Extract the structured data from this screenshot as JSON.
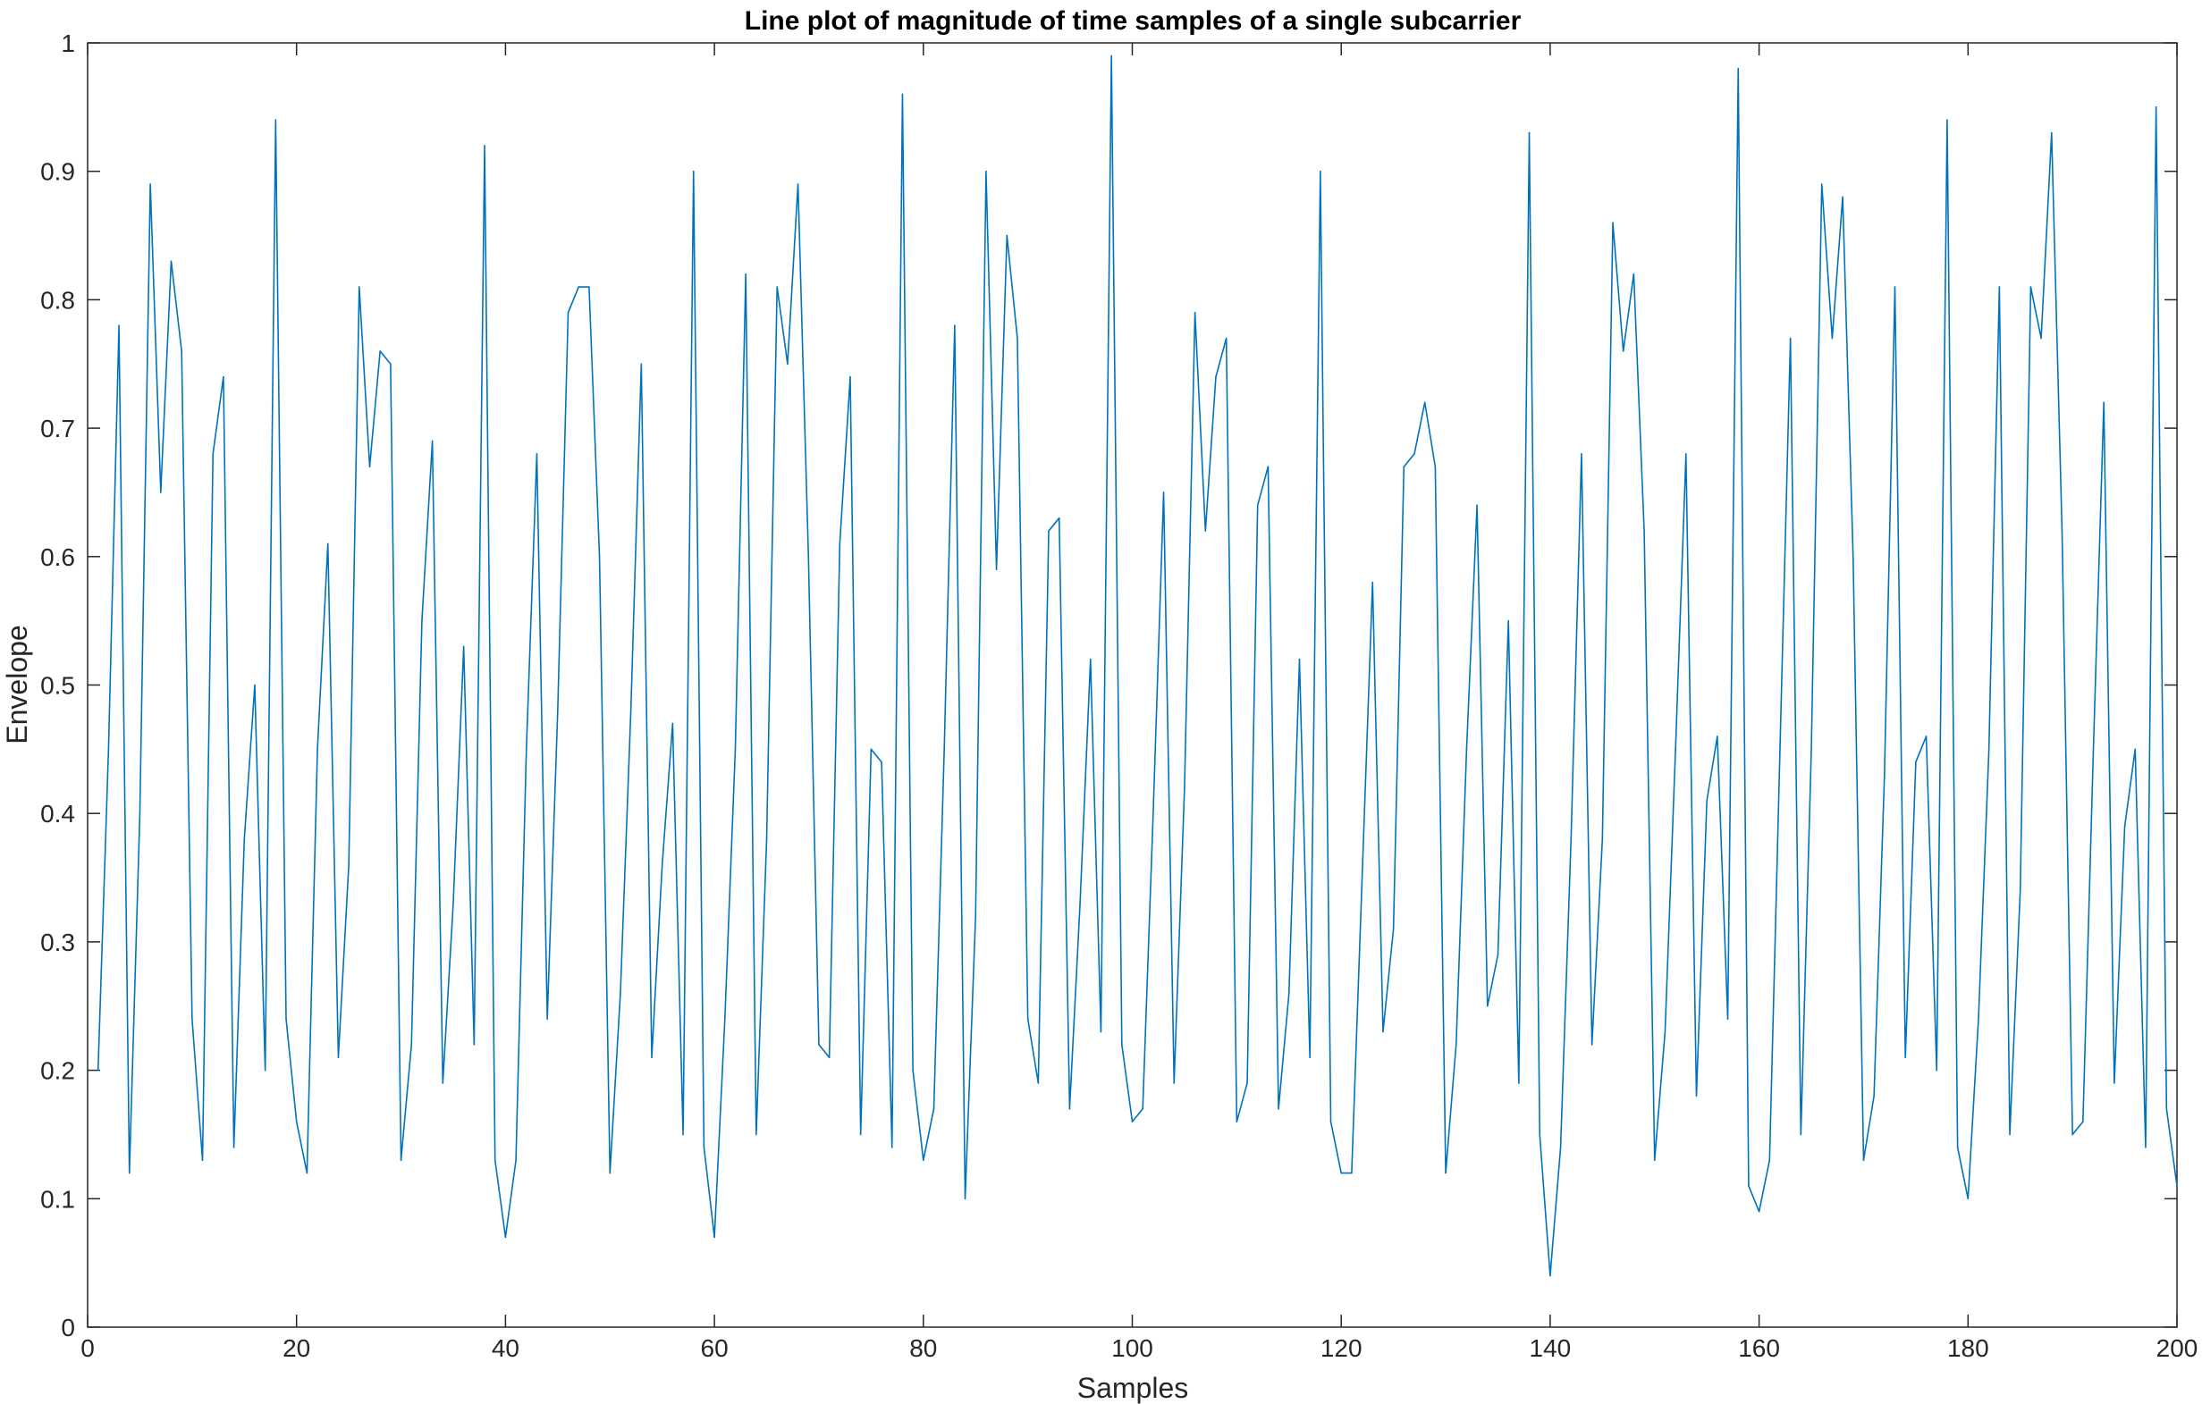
{
  "chart_data": {
    "type": "line",
    "title": "Line plot of magnitude of time samples of a single subcarrier",
    "xlabel": "Samples",
    "ylabel": "Envelope",
    "xlim": [
      0,
      200
    ],
    "ylim": [
      0,
      1
    ],
    "xticks": [
      "0",
      "20",
      "40",
      "60",
      "80",
      "100",
      "120",
      "140",
      "160",
      "180",
      "200"
    ],
    "yticks": [
      "0",
      "0.1",
      "0.2",
      "0.3",
      "0.4",
      "0.5",
      "0.6",
      "0.7",
      "0.8",
      "0.9",
      "1"
    ],
    "grid": false,
    "line_color": "#0072BD",
    "series": [
      {
        "x_start": 1,
        "x_step": 1,
        "values": [
          0.2,
          0.45,
          0.78,
          0.12,
          0.4,
          0.89,
          0.65,
          0.83,
          0.76,
          0.24,
          0.13,
          0.68,
          0.74,
          0.14,
          0.38,
          0.5,
          0.2,
          0.94,
          0.24,
          0.16,
          0.12,
          0.45,
          0.61,
          0.21,
          0.36,
          0.81,
          0.67,
          0.76,
          0.75,
          0.13,
          0.22,
          0.55,
          0.69,
          0.19,
          0.33,
          0.53,
          0.22,
          0.92,
          0.13,
          0.07,
          0.13,
          0.45,
          0.68,
          0.24,
          0.48,
          0.79,
          0.81,
          0.81,
          0.6,
          0.12,
          0.26,
          0.48,
          0.75,
          0.21,
          0.36,
          0.47,
          0.15,
          0.9,
          0.14,
          0.07,
          0.24,
          0.45,
          0.82,
          0.15,
          0.38,
          0.81,
          0.75,
          0.89,
          0.6,
          0.22,
          0.21,
          0.61,
          0.74,
          0.15,
          0.45,
          0.44,
          0.14,
          0.96,
          0.2,
          0.13,
          0.17,
          0.45,
          0.78,
          0.1,
          0.32,
          0.9,
          0.59,
          0.85,
          0.77,
          0.24,
          0.19,
          0.62,
          0.63,
          0.17,
          0.33,
          0.52,
          0.23,
          0.99,
          0.22,
          0.16,
          0.17,
          0.4,
          0.65,
          0.19,
          0.42,
          0.79,
          0.62,
          0.74,
          0.77,
          0.16,
          0.19,
          0.64,
          0.67,
          0.17,
          0.26,
          0.52,
          0.21,
          0.9,
          0.16,
          0.12,
          0.12,
          0.35,
          0.58,
          0.23,
          0.31,
          0.67,
          0.68,
          0.72,
          0.67,
          0.12,
          0.22,
          0.45,
          0.64,
          0.25,
          0.29,
          0.55,
          0.19,
          0.93,
          0.15,
          0.04,
          0.14,
          0.38,
          0.68,
          0.22,
          0.38,
          0.86,
          0.76,
          0.82,
          0.62,
          0.13,
          0.23,
          0.45,
          0.68,
          0.18,
          0.41,
          0.46,
          0.24,
          0.98,
          0.11,
          0.09,
          0.13,
          0.45,
          0.77,
          0.15,
          0.45,
          0.89,
          0.77,
          0.88,
          0.6,
          0.13,
          0.18,
          0.43,
          0.81,
          0.21,
          0.44,
          0.46,
          0.2,
          0.94,
          0.14,
          0.1,
          0.24,
          0.45,
          0.81,
          0.15,
          0.34,
          0.81,
          0.77,
          0.93,
          0.62,
          0.15,
          0.16,
          0.45,
          0.72,
          0.19,
          0.39,
          0.45,
          0.14,
          0.95,
          0.17,
          0.11
        ]
      }
    ]
  }
}
